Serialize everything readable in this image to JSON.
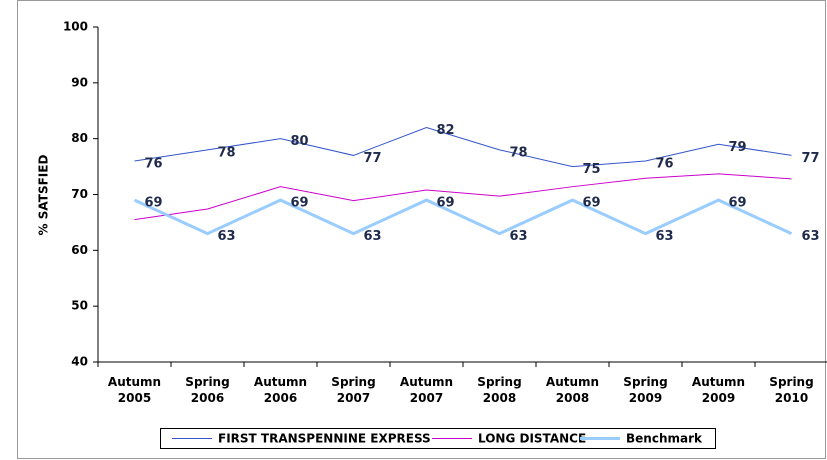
{
  "chart_data": {
    "type": "line",
    "y_label": "% SATSFIED",
    "categories": [
      "Autumn 2005",
      "Spring 2006",
      "Autumn 2006",
      "Spring 2007",
      "Autumn 2007",
      "Spring 2008",
      "Autumn 2008",
      "Spring 2009",
      "Autumn 2009",
      "Spring 2010"
    ],
    "series": [
      {
        "name": "FIRST TRANSPENNINE EXPRESS",
        "color": "#3355cc",
        "width": 1,
        "labels": true,
        "values": [
          76,
          78,
          80,
          77,
          82,
          78,
          75,
          76,
          79,
          77
        ]
      },
      {
        "name": "LONG DISTANCE",
        "color": "#cc00cc",
        "width": 1,
        "labels": false,
        "values": [
          65.5,
          67.4,
          71.4,
          68.9,
          70.8,
          69.7,
          71.4,
          72.9,
          73.7,
          72.8
        ]
      },
      {
        "name": "Benchmark",
        "color": "#99ccff",
        "width": 3,
        "labels": true,
        "values": [
          69,
          63,
          69,
          63,
          69,
          63,
          69,
          63,
          69,
          63
        ]
      }
    ],
    "ylim": [
      40,
      100
    ],
    "yticks": [
      40,
      50,
      60,
      70,
      80,
      90,
      100
    ],
    "legend": "bottom"
  }
}
